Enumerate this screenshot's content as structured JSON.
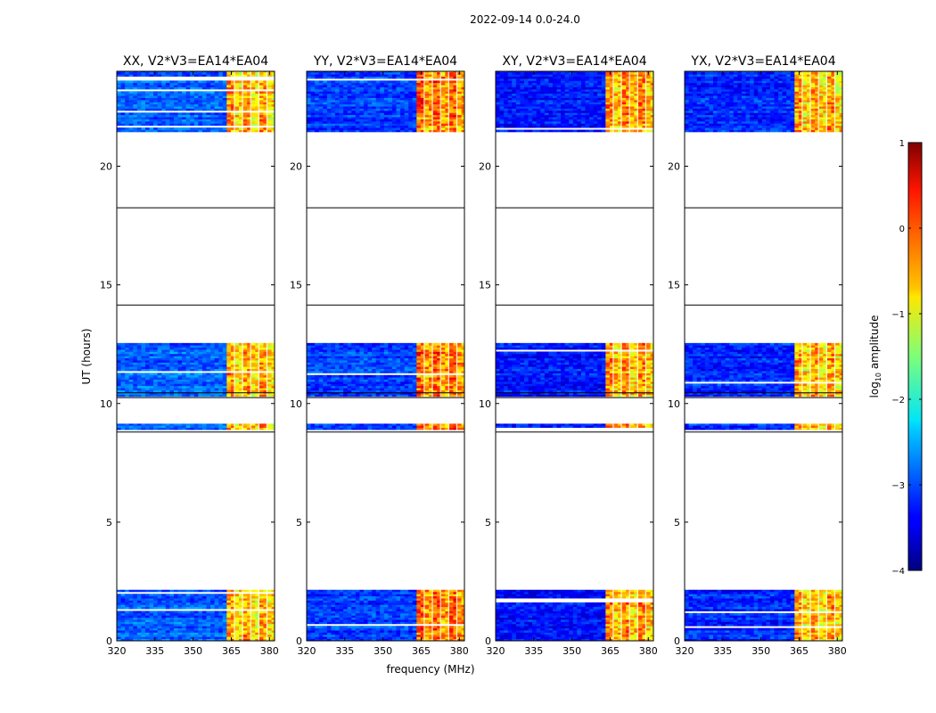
{
  "chart_data": {
    "type": "heatmap",
    "suptitle": "2022-09-14 0.0-24.0",
    "xlabel": "frequency (MHz)",
    "ylabel": "UT (hours)",
    "xlim": [
      320,
      382
    ],
    "ylim": [
      0,
      24
    ],
    "xticks": [
      320,
      335,
      350,
      365,
      380
    ],
    "yticks": [
      0,
      5,
      10,
      15,
      20
    ],
    "colorbar": {
      "label": "log10 amplitude",
      "label_text": "log",
      "label_sub": "10",
      "label_rest": " amplitude",
      "range": [
        -4,
        1
      ],
      "ticks": [
        -4,
        -3,
        -2,
        -1,
        0,
        1
      ],
      "tick_labels": [
        "−4",
        "−3",
        "−2",
        "−1",
        "0",
        "1"
      ],
      "colormap": "jet"
    },
    "observed_ut_blocks": [
      [
        0.0,
        2.15
      ],
      [
        8.9,
        9.15
      ],
      [
        10.3,
        12.55
      ],
      [
        21.45,
        24.0
      ]
    ],
    "gap_marker_lines_ut": [
      8.8,
      10.25,
      10.45,
      14.15,
      18.25
    ],
    "rfi_bands_mhz": [
      [
        363,
        381.5
      ]
    ],
    "panels": [
      {
        "title": "XX, V2*V3=EA14*EA04",
        "base_level": -2.9,
        "rfi_level": -0.4
      },
      {
        "title": "YY, V2*V3=EA14*EA04",
        "base_level": -3.1,
        "rfi_level": -0.1
      },
      {
        "title": "XY, V2*V3=EA14*EA04",
        "base_level": -3.3,
        "rfi_level": -0.3
      },
      {
        "title": "YX, V2*V3=EA14*EA04",
        "base_level": -3.2,
        "rfi_level": -0.4
      }
    ]
  }
}
